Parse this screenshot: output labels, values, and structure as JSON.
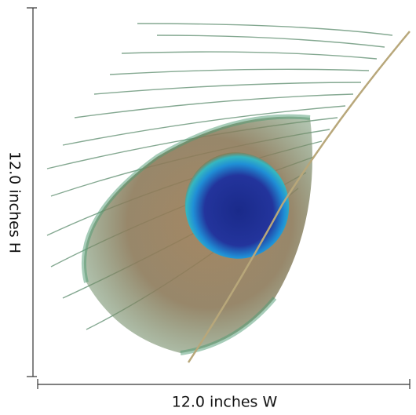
{
  "dimensions": {
    "height_label": "12.0 inches H",
    "width_label": "12.0 inches W"
  }
}
